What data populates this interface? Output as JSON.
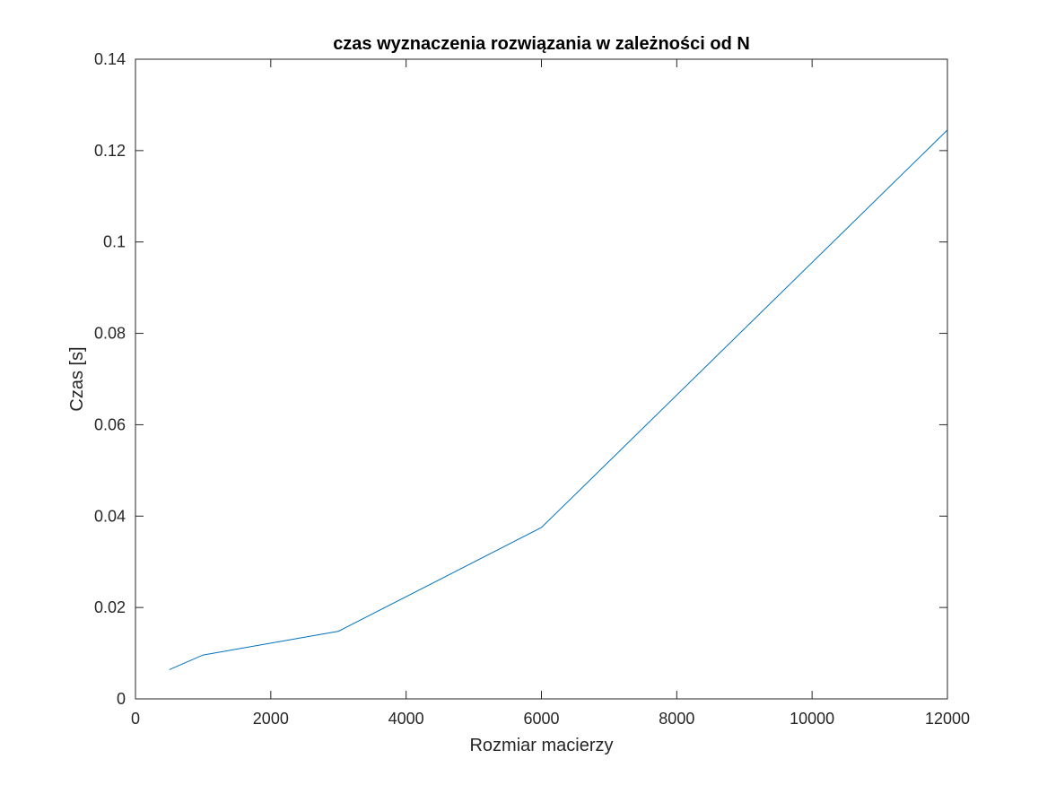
{
  "chart_data": {
    "type": "line",
    "title": "czas wyznaczenia rozwiązania w zależności od N",
    "xlabel": "Rozmiar macierzy",
    "ylabel": "Czas [s]",
    "xlim": [
      0,
      12000
    ],
    "ylim": [
      0,
      0.14
    ],
    "xticks": [
      0,
      2000,
      4000,
      6000,
      8000,
      10000,
      12000
    ],
    "xtick_labels": [
      "0",
      "2000",
      "4000",
      "6000",
      "8000",
      "10000",
      "12000"
    ],
    "yticks": [
      0,
      0.02,
      0.04,
      0.06,
      0.08,
      0.1,
      0.12,
      0.14
    ],
    "ytick_labels": [
      "0",
      "0.02",
      "0.04",
      "0.06",
      "0.08",
      "0.1",
      "0.12",
      "0.14"
    ],
    "grid": false,
    "legend": "none",
    "series": [
      {
        "color": "#0072bd",
        "x": [
          500,
          1000,
          3000,
          6000,
          12000
        ],
        "y": [
          0.0064,
          0.0096,
          0.0148,
          0.0375,
          0.1245
        ]
      }
    ]
  }
}
